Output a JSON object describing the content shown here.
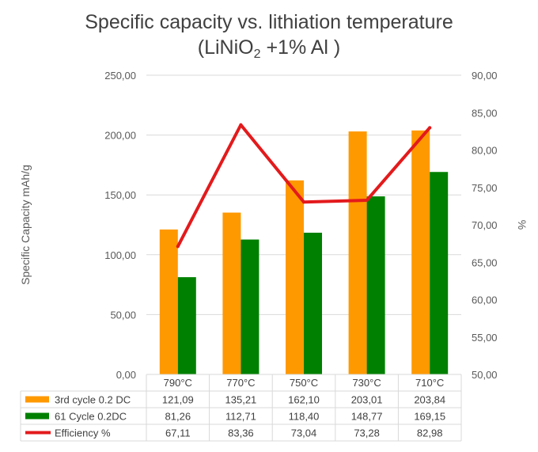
{
  "chart_data": {
    "type": "bar",
    "title_line1": "Specific capacity vs. lithiation temperature",
    "title_line2_prefix": "(LiNiO",
    "title_line2_sub": "2",
    "title_line2_suffix": " +1% Al )",
    "ylabel": "Specific Capacity mAh/g",
    "y2label": "%",
    "ylim": [
      0,
      250
    ],
    "y2lim": [
      50,
      90
    ],
    "y_ticks": [
      "0,00",
      "50,00",
      "100,00",
      "150,00",
      "200,00",
      "250,00"
    ],
    "y2_ticks": [
      "50,00",
      "55,00",
      "60,00",
      "65,00",
      "70,00",
      "75,00",
      "80,00",
      "85,00",
      "90,00"
    ],
    "categories": [
      "790°C",
      "770°C",
      "750°C",
      "730°C",
      "710°C"
    ],
    "series": [
      {
        "name": "3rd cycle 0.2 DC",
        "kind": "bar",
        "axis": "left",
        "color": "#ff9900",
        "values": [
          121.09,
          135.21,
          162.1,
          203.01,
          203.84
        ],
        "labels": [
          "121,09",
          "135,21",
          "162,10",
          "203,01",
          "203,84"
        ]
      },
      {
        "name": "61 Cycle 0.2DC",
        "kind": "bar",
        "axis": "left",
        "color": "#008000",
        "values": [
          81.26,
          112.71,
          118.4,
          148.77,
          169.15
        ],
        "labels": [
          "81,26",
          "112,71",
          "118,40",
          "148,77",
          "169,15"
        ]
      },
      {
        "name": "Efficiency %",
        "kind": "line",
        "axis": "right",
        "color": "#e31a1c",
        "values": [
          67.11,
          83.36,
          73.04,
          73.28,
          82.98
        ],
        "labels": [
          "67,11",
          "83,36",
          "73,04",
          "73,28",
          "82,98"
        ]
      }
    ],
    "grid": true,
    "legend": "data-table"
  }
}
